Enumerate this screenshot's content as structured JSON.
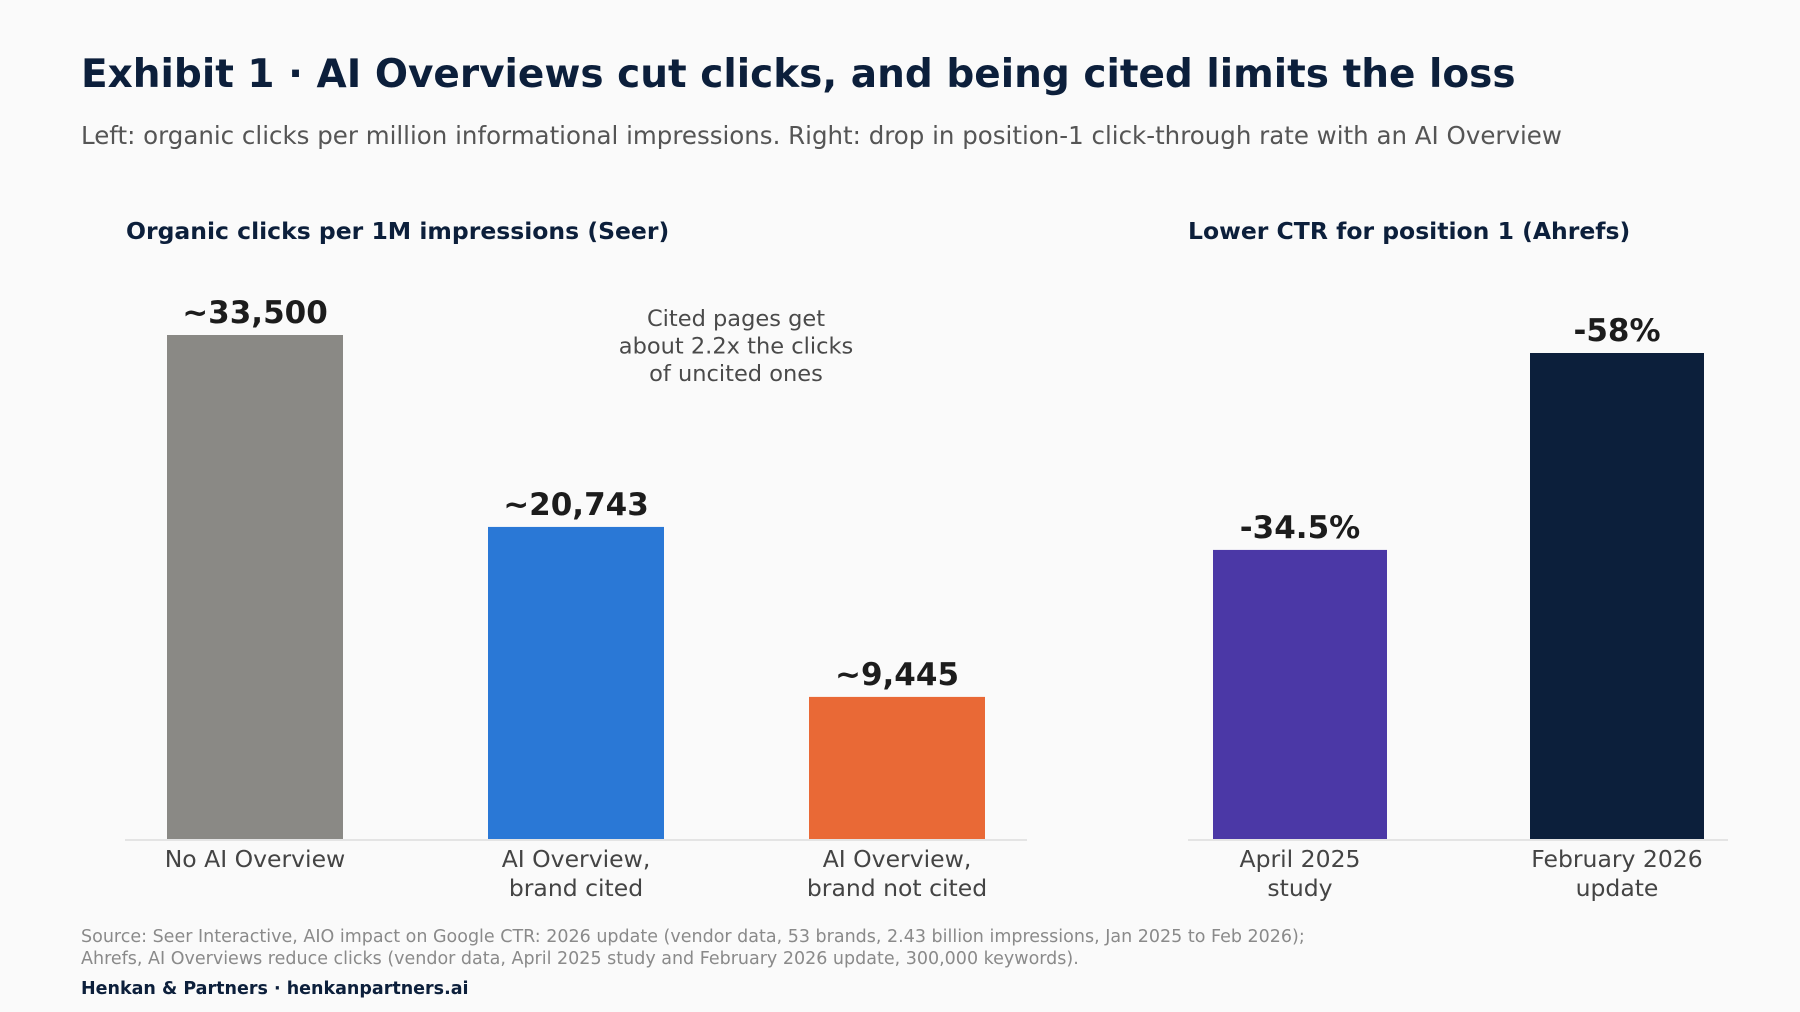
{
  "title": "Exhibit 1 · AI Overviews cut clicks, and being cited limits the loss",
  "subtitle": "Left: organic clicks per million informational impressions. Right: drop in position-1 click-through rate with an AI Overview",
  "chart_data": [
    {
      "type": "bar",
      "title": "Organic clicks per 1M impressions (Seer)",
      "categories": [
        [
          "No AI Overview"
        ],
        [
          "AI Overview,",
          "brand cited"
        ],
        [
          "AI Overview,",
          "brand not cited"
        ]
      ],
      "values": [
        33500,
        20743,
        9445
      ],
      "value_labels": [
        "~33,500",
        "~20,743",
        "~9,445"
      ],
      "colors": [
        "#8a8985",
        "#2a78d6",
        "#e96936"
      ],
      "annotation": [
        "Cited pages get",
        "about 2.2x the clicks",
        "of uncited ones"
      ],
      "ylim": [
        0,
        33500
      ],
      "grid": false
    },
    {
      "type": "bar",
      "title": "Lower CTR for position 1 (Ahrefs)",
      "categories": [
        [
          "April 2025",
          "study"
        ],
        [
          "February 2026",
          "update"
        ]
      ],
      "values": [
        34.5,
        58
      ],
      "value_labels": [
        "-34.5%",
        "-58%"
      ],
      "colors": [
        "#4b38a6",
        "#0c1f3b"
      ],
      "ylim": [
        0,
        58
      ],
      "grid": false
    }
  ],
  "source": [
    "Source: Seer Interactive, AIO impact on Google CTR: 2026 update (vendor data, 53 brands, 2.43 billion impressions, Jan 2025 to Feb 2026);",
    "Ahrefs, AI Overviews reduce clicks (vendor data, April 2025 study and February 2026 update, 300,000 keywords)."
  ],
  "brand": "Henkan & Partners · henkanpartners.ai"
}
